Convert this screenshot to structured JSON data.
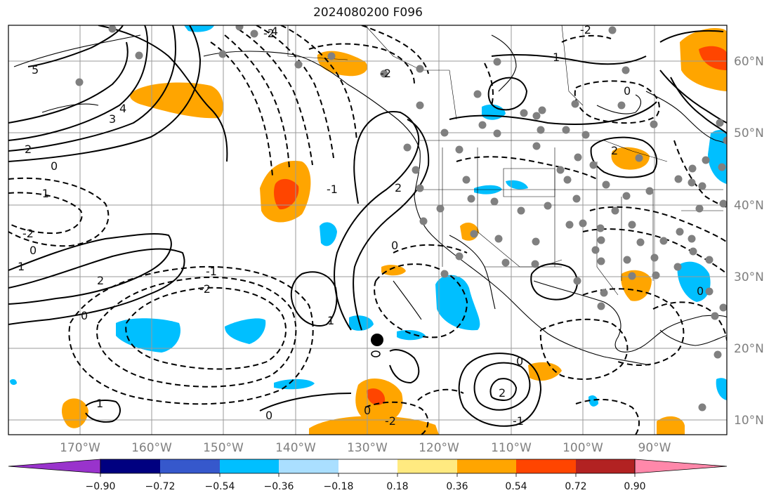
{
  "title": "2024080200 F096",
  "map": {
    "lon_range": [
      -180,
      -80
    ],
    "lat_range": [
      8,
      65
    ],
    "lon_labels": [
      "170°W",
      "160°W",
      "150°W",
      "140°W",
      "130°W",
      "120°W",
      "110°W",
      "100°W",
      "90°W"
    ],
    "lat_labels": [
      "60°N",
      "50°N",
      "40°N",
      "30°N",
      "20°N",
      "10°N"
    ],
    "contour_labels": [
      "5",
      "4",
      "3",
      "2",
      "0",
      "-1",
      "-2",
      "0",
      "1",
      "2",
      "-1",
      "-2",
      "0",
      "1",
      "0",
      "-2",
      "-4",
      "-2",
      "1",
      "0",
      "2",
      "-1",
      "2",
      "0",
      "1",
      "-2",
      "0",
      "-1",
      "0",
      "2",
      "-2",
      "0"
    ],
    "gridlines": true,
    "colors": {
      "contour": "#000000",
      "coast": "#000000",
      "grid": "#9a9a9a",
      "station": "#808080"
    }
  },
  "colorbar": {
    "tick_labels": [
      "−0.90",
      "−0.72",
      "−0.54",
      "−0.36",
      "−0.18",
      "0.18",
      "0.36",
      "0.54",
      "0.72",
      "0.90"
    ],
    "colors": [
      "#9933cc",
      "#000080",
      "#3658cc",
      "#00bfff",
      "#aadfff",
      "#ffffff",
      "#ffea80",
      "#ffa500",
      "#ff4500",
      "#b22222",
      "#ff88aa"
    ]
  }
}
